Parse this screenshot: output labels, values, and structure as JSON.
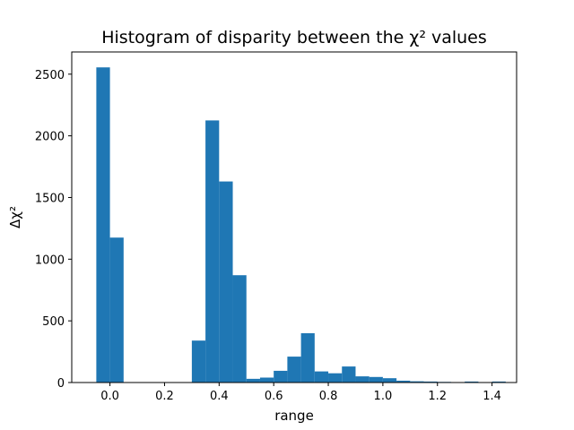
{
  "chart_data": {
    "type": "bar",
    "title": "Histogram of disparity between the χ² values",
    "xlabel": "range",
    "ylabel": "Δχ²",
    "xlim": [
      -0.14,
      1.49
    ],
    "ylim": [
      0,
      2680
    ],
    "x_ticks": [
      0.0,
      0.2,
      0.4,
      0.6,
      0.8,
      1.0,
      1.2,
      1.4
    ],
    "x_tick_labels": [
      "0.0",
      "0.2",
      "0.4",
      "0.6",
      "0.8",
      "1.0",
      "1.2",
      "1.4"
    ],
    "y_ticks": [
      0,
      500,
      1000,
      1500,
      2000,
      2500
    ],
    "y_tick_labels": [
      "0",
      "500",
      "1000",
      "1500",
      "2000",
      "2500"
    ],
    "grid": false,
    "bar_color": "#1f77b4",
    "bin_width": 0.05,
    "bin_starts": [
      -0.05,
      0.0,
      0.05,
      0.1,
      0.15,
      0.2,
      0.25,
      0.3,
      0.35,
      0.4,
      0.45,
      0.5,
      0.55,
      0.6,
      0.65,
      0.7,
      0.75,
      0.8,
      0.85,
      0.9,
      0.95,
      1.0,
      1.05,
      1.1,
      1.15,
      1.2,
      1.25,
      1.3,
      1.35,
      1.4
    ],
    "values": [
      2555,
      1175,
      0,
      0,
      0,
      0,
      0,
      340,
      2125,
      1630,
      870,
      30,
      40,
      95,
      210,
      400,
      90,
      75,
      130,
      50,
      45,
      35,
      15,
      10,
      8,
      5,
      3,
      8,
      3,
      8
    ]
  }
}
